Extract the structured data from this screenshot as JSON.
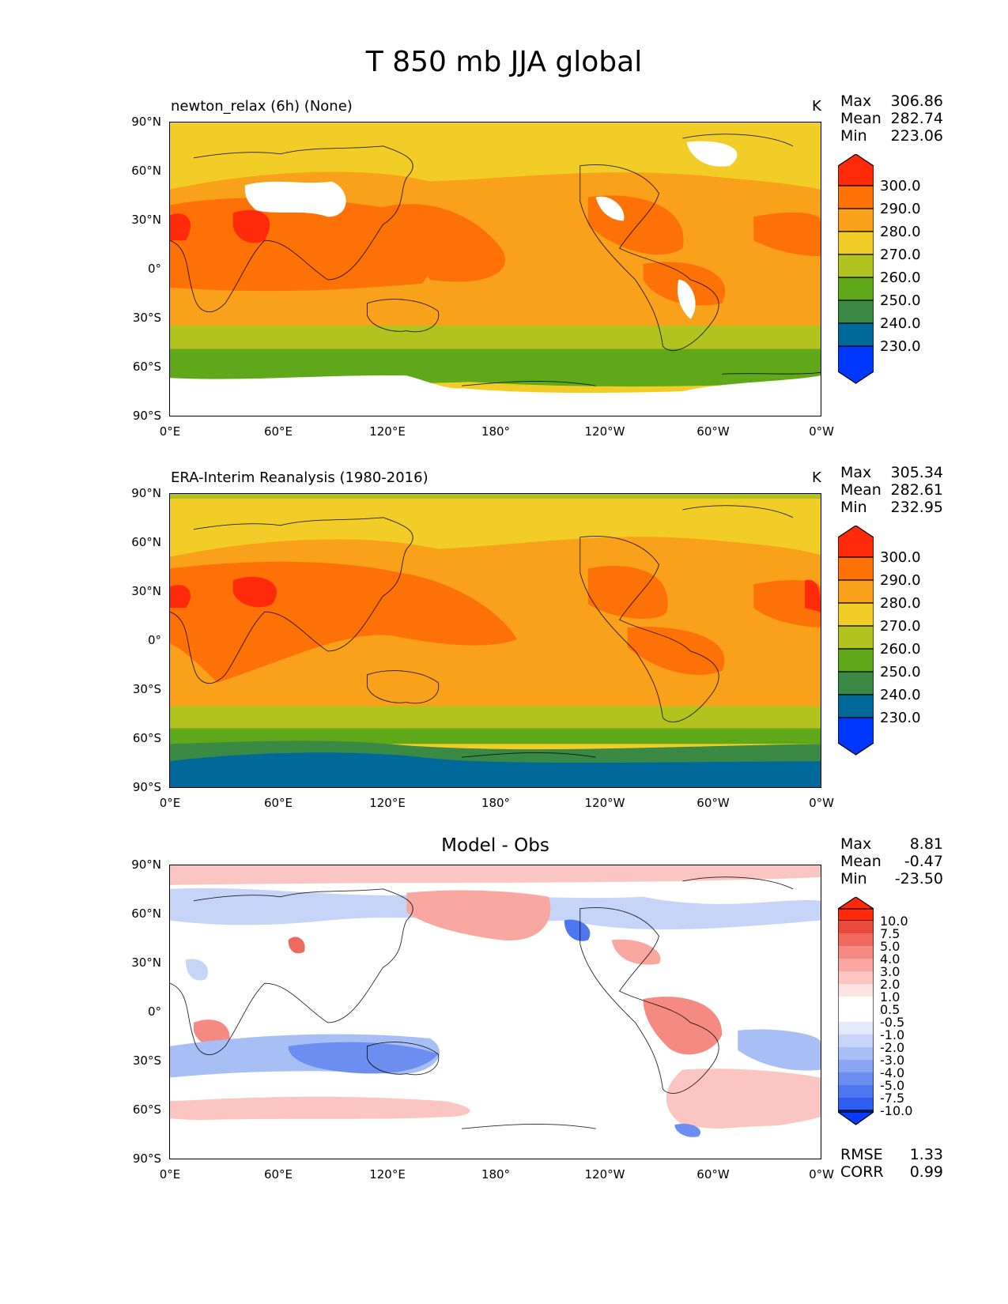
{
  "title": "T 850 mb JJA global",
  "axes": {
    "y_labels": [
      "90°N",
      "60°N",
      "30°N",
      "0°",
      "30°S",
      "60°S",
      "90°S"
    ],
    "x_labels": [
      "0°E",
      "60°E",
      "120°E",
      "180°",
      "120°W",
      "60°W",
      "0°W"
    ]
  },
  "panels": {
    "model": {
      "title": "newton_relax (6h) (None)",
      "units": "K",
      "stats": {
        "max_label": "Max",
        "max": "306.86",
        "mean_label": "Mean",
        "mean": "282.74",
        "min_label": "Min",
        "min": "223.06"
      },
      "colorbar": [
        "300.0",
        "290.0",
        "280.0",
        "270.0",
        "260.0",
        "250.0",
        "240.0",
        "230.0"
      ]
    },
    "obs": {
      "title": "ERA-Interim Reanalysis (1980-2016)",
      "units": "K",
      "stats": {
        "max_label": "Max",
        "max": "305.34",
        "mean_label": "Mean",
        "mean": "282.61",
        "min_label": "Min",
        "min": "232.95"
      },
      "colorbar": [
        "300.0",
        "290.0",
        "280.0",
        "270.0",
        "260.0",
        "250.0",
        "240.0",
        "230.0"
      ]
    },
    "diff": {
      "title": "Model - Obs",
      "stats": {
        "max_label": "Max",
        "max": "8.81",
        "mean_label": "Mean",
        "mean": "-0.47",
        "min_label": "Min",
        "min": "-23.50"
      },
      "colorbar": [
        "10.0",
        "7.5",
        "5.0",
        "4.0",
        "3.0",
        "2.0",
        "1.0",
        "0.5",
        "-0.5",
        "-1.0",
        "-2.0",
        "-3.0",
        "-4.0",
        "-5.0",
        "-7.5",
        "-10.0"
      ],
      "rmse_label": "RMSE",
      "rmse": "1.33",
      "corr_label": "CORR",
      "corr": "0.99"
    }
  },
  "colors": {
    "temp_scale": [
      "#0037ff",
      "#00699a",
      "#3a8a45",
      "#5fa81a",
      "#b2c21e",
      "#f2cd27",
      "#f9a11b",
      "#fd7106",
      "#ff2a0a"
    ],
    "diff_scale": [
      "#0a3aff",
      "#2d5cf0",
      "#4d77ee",
      "#6b8ef0",
      "#8aa6f2",
      "#a8bff6",
      "#c6d4f8",
      "#e3eafc",
      "#ffffff",
      "#fde3e1",
      "#fbc6c1",
      "#f8a8a1",
      "#f48a82",
      "#ef6a5e",
      "#ea4a3a",
      "#ff2a0a"
    ]
  }
}
